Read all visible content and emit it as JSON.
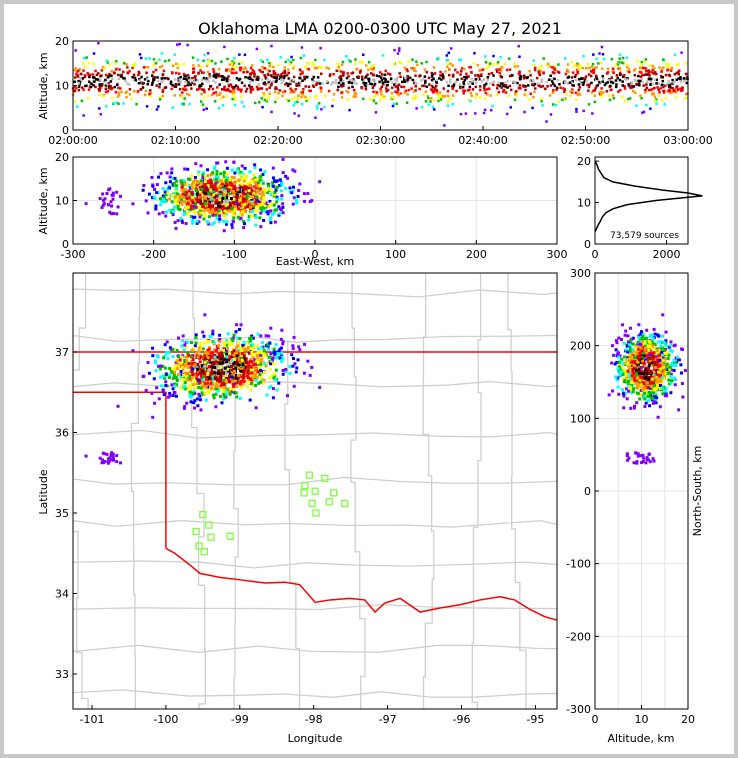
{
  "chart_data": [
    {
      "type": "scatter",
      "title": "Oklahoma LMA 0200-0300 UTC May 27, 2021",
      "panel": "time-height",
      "xlabel": "",
      "ylabel": "Altitude, km",
      "xticks": [
        "02:00:00",
        "02:10:00",
        "02:20:00",
        "02:30:00",
        "02:40:00",
        "02:50:00",
        "03:00:00"
      ],
      "xlim_minutes": [
        0,
        60
      ],
      "ylim": [
        0,
        20
      ],
      "yticks": [
        "0",
        "10",
        "20"
      ],
      "altitude_mean_km": 11,
      "altitude_spread_km": 3
    },
    {
      "type": "scatter",
      "panel": "east-west vs altitude",
      "xlabel": "East-West, km",
      "ylabel": "Altitude, km",
      "xlim": [
        -300,
        300
      ],
      "ylim": [
        0,
        20
      ],
      "xticks": [
        "-300",
        "-200",
        "-100",
        "0",
        "100",
        "200",
        "300"
      ],
      "yticks": [
        "0",
        "10",
        "20"
      ],
      "grid": true
    },
    {
      "type": "line",
      "panel": "altitude histogram",
      "annotation": "73,579 sources",
      "xlim": [
        0,
        2600
      ],
      "ylim": [
        0,
        21
      ],
      "xticks": [
        "0",
        "2000"
      ],
      "yticks": [
        "0",
        "10",
        "20"
      ],
      "profile": [
        [
          20,
          0
        ],
        [
          19,
          60
        ],
        [
          18,
          100
        ],
        [
          16,
          250
        ],
        [
          15,
          500
        ],
        [
          14,
          1100
        ],
        [
          13,
          1900
        ],
        [
          12.3,
          2600
        ],
        [
          11.6,
          3000
        ],
        [
          11.2,
          2500
        ],
        [
          10.5,
          1700
        ],
        [
          9.5,
          900
        ],
        [
          8.5,
          500
        ],
        [
          7.5,
          300
        ],
        [
          6.5,
          200
        ],
        [
          5.5,
          150
        ],
        [
          4.5,
          80
        ],
        [
          3.5,
          30
        ],
        [
          3,
          0
        ]
      ]
    },
    {
      "type": "scatter",
      "panel": "plan view map",
      "xlabel": "Longitude",
      "ylabel": "Latitude",
      "xlim": [
        -101.26,
        -94.71
      ],
      "ylim": [
        32.6,
        38.0
      ],
      "xticks": [
        "-101",
        "-100",
        "-99",
        "-98",
        "-97",
        "-96",
        "-95"
      ],
      "yticks": [
        "37",
        "36",
        "35",
        "34",
        "33"
      ],
      "storm_center_km": {
        "ew": -115,
        "ns": 170
      },
      "stations": [
        [
          -98.06,
          35.47
        ],
        [
          -97.85,
          35.43
        ],
        [
          -98.12,
          35.34
        ],
        [
          -97.98,
          35.27
        ],
        [
          -98.13,
          35.25
        ],
        [
          -97.73,
          35.25
        ],
        [
          -98.02,
          35.12
        ],
        [
          -97.79,
          35.14
        ],
        [
          -97.58,
          35.12
        ],
        [
          -97.97,
          35.0
        ],
        [
          -99.5,
          34.98
        ],
        [
          -99.42,
          34.85
        ],
        [
          -99.59,
          34.77
        ],
        [
          -99.39,
          34.7
        ],
        [
          -99.13,
          34.71
        ],
        [
          -99.55,
          34.59
        ],
        [
          -99.48,
          34.52
        ]
      ],
      "red_river": [
        [
          -100.0,
          34.56
        ],
        [
          -99.88,
          34.5
        ],
        [
          -99.67,
          34.35
        ],
        [
          -99.54,
          34.25
        ],
        [
          -99.27,
          34.2
        ],
        [
          -99.0,
          34.17
        ],
        [
          -98.66,
          34.13
        ],
        [
          -98.39,
          34.14
        ],
        [
          -98.19,
          34.11
        ],
        [
          -97.98,
          33.89
        ],
        [
          -97.78,
          33.92
        ],
        [
          -97.51,
          33.94
        ],
        [
          -97.31,
          33.92
        ],
        [
          -97.17,
          33.77
        ],
        [
          -97.04,
          33.88
        ],
        [
          -96.83,
          33.94
        ],
        [
          -96.56,
          33.77
        ],
        [
          -96.29,
          33.82
        ],
        [
          -96.02,
          33.86
        ],
        [
          -95.75,
          33.92
        ],
        [
          -95.48,
          33.96
        ],
        [
          -95.28,
          33.92
        ],
        [
          -95.07,
          33.8
        ],
        [
          -94.87,
          33.71
        ],
        [
          -94.71,
          33.67
        ]
      ]
    },
    {
      "type": "scatter",
      "panel": "altitude vs north-south",
      "xlabel": "Altitude, km",
      "ylabel": "North-South, km",
      "xlim": [
        0,
        20
      ],
      "ylim": [
        -300,
        300
      ],
      "xticks": [
        "0",
        "10",
        "20"
      ],
      "yticks": [
        "300",
        "200",
        "100",
        "0",
        "-100",
        "-200",
        "-300"
      ],
      "grid": true
    }
  ],
  "colors": {
    "border": "#ff0000",
    "station": "#80ff40",
    "county": "#cfcfcf"
  }
}
